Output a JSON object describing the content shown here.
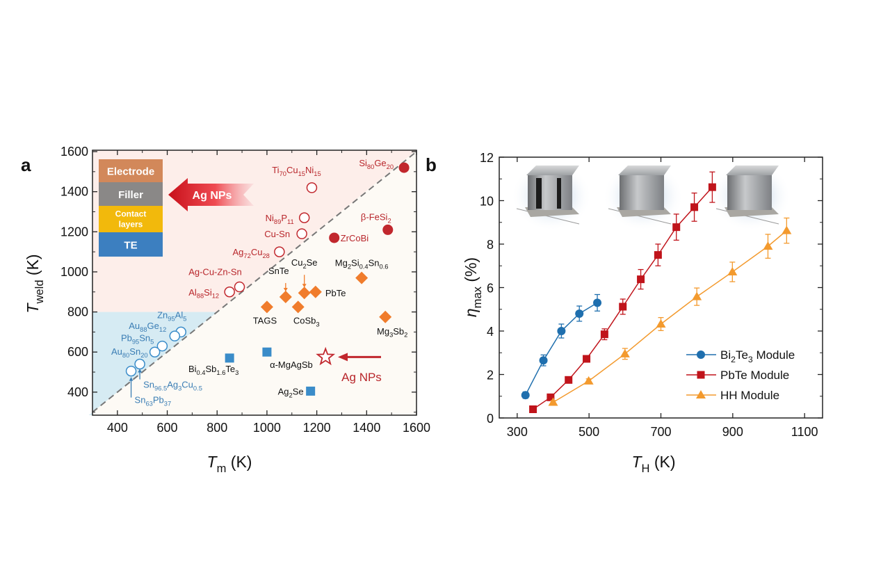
{
  "chart_data": [
    {
      "panel": "a",
      "type": "scatter",
      "xlabel": [
        [
          "T",
          0,
          "i"
        ],
        [
          "m",
          1
        ],
        [
          " (K)",
          0
        ]
      ],
      "ylabel": [
        [
          "T",
          0,
          "i"
        ],
        [
          "weld",
          1
        ],
        [
          " (K)",
          0
        ]
      ],
      "xlim": [
        300,
        1600
      ],
      "ylim": [
        285,
        1607
      ],
      "xticks": [
        400,
        600,
        800,
        1000,
        1200,
        1400,
        1600
      ],
      "yticks": [
        400,
        600,
        800,
        1000,
        1200,
        1400,
        1600
      ],
      "diagonal": "y = x dashed",
      "regions": {
        "pink": "#fdeeea",
        "blue": "#d6ebf3",
        "background": "#fdfaf5"
      },
      "colors": {
        "red": "#c1272d",
        "orange": "#f07c2c",
        "blue": "#3a8cc9",
        "red_text": "#b8262b",
        "blue_text": "#3a7db4"
      },
      "inset_layers": [
        {
          "label": "Electrode",
          "color": "#d2885a"
        },
        {
          "label": "Filler",
          "color": "#8a8887"
        },
        {
          "label": "Contact layers",
          "color": "#f2b90c"
        },
        {
          "label": "TE",
          "color": "#3c7fc0"
        }
      ],
      "inset_arrow_label": "Ag NPs",
      "groups": [
        {
          "marker": "open-circle",
          "color": "red",
          "points": [
            {
              "label": [
                [
                  "Ti",
                  0
                ],
                [
                  "70",
                  1
                ],
                [
                  "Cu",
                  0
                ],
                [
                  "15",
                  1
                ],
                [
                  "Ni",
                  0
                ],
                [
                  "15",
                  1
                ]
              ],
              "x": 1180,
              "y": 1420
            },
            {
              "label": [
                [
                  "Ni",
                  0
                ],
                [
                  "89",
                  1
                ],
                [
                  "P",
                  0
                ],
                [
                  "11",
                  1
                ]
              ],
              "x": 1150,
              "y": 1270
            },
            {
              "label": [
                [
                  "Cu-Sn",
                  0
                ]
              ],
              "x": 1140,
              "y": 1190
            },
            {
              "label": [
                [
                  "Ag",
                  0
                ],
                [
                  "72",
                  1
                ],
                [
                  "Cu",
                  0
                ],
                [
                  "28",
                  1
                ]
              ],
              "x": 1050,
              "y": 1100
            },
            {
              "label": [
                [
                  "Ag-Cu-Zn-Sn",
                  0
                ]
              ],
              "x": 890,
              "y": 925
            },
            {
              "label": [
                [
                  "Al",
                  0
                ],
                [
                  "88",
                  1
                ],
                [
                  "Si",
                  0
                ],
                [
                  "12",
                  1
                ]
              ],
              "x": 850,
              "y": 900
            }
          ]
        },
        {
          "marker": "filled-circle",
          "color": "red",
          "points": [
            {
              "label": [
                [
                  "Si",
                  0
                ],
                [
                  "80",
                  1
                ],
                [
                  "Ge",
                  0
                ],
                [
                  "20",
                  1
                ]
              ],
              "x": 1550,
              "y": 1520
            },
            {
              "label": [
                [
                  "β-FeSi",
                  0
                ],
                [
                  "2",
                  1
                ]
              ],
              "x": 1485,
              "y": 1210
            },
            {
              "label": [
                [
                  "ZrCoBi",
                  0
                ]
              ],
              "x": 1270,
              "y": 1170
            }
          ]
        },
        {
          "marker": "diamond",
          "color": "orange",
          "points": [
            {
              "label": [
                [
                  "Mg",
                  0
                ],
                [
                  "2",
                  1
                ],
                [
                  "Si",
                  0
                ],
                [
                  "0.4",
                  1
                ],
                [
                  "Sn",
                  0
                ],
                [
                  "0.6",
                  1
                ]
              ],
              "x": 1380,
              "y": 970
            },
            {
              "label": [
                [
                  "SnTe",
                  0
                ]
              ],
              "x": 1075,
              "y": 875
            },
            {
              "label": [
                [
                  "Cu",
                  0
                ],
                [
                  "2",
                  1
                ],
                [
                  "Se",
                  0
                ]
              ],
              "x": 1150,
              "y": 895
            },
            {
              "label": [
                [
                  "PbTe",
                  0
                ]
              ],
              "x": 1195,
              "y": 900
            },
            {
              "label": [
                [
                  "TAGS",
                  0
                ]
              ],
              "x": 1000,
              "y": 825
            },
            {
              "label": [
                [
                  "CoSb",
                  0
                ],
                [
                  "3",
                  1
                ]
              ],
              "x": 1125,
              "y": 825
            },
            {
              "label": [
                [
                  "Mg",
                  0
                ],
                [
                  "3",
                  1
                ],
                [
                  "Sb",
                  0
                ],
                [
                  "2",
                  1
                ]
              ],
              "x": 1475,
              "y": 775
            }
          ]
        },
        {
          "marker": "square",
          "color": "blue",
          "points": [
            {
              "label": [
                [
                  "Bi",
                  0
                ],
                [
                  "0.4",
                  1
                ],
                [
                  "Sb",
                  0
                ],
                [
                  "1.6",
                  1
                ],
                [
                  "Te",
                  0
                ],
                [
                  "3",
                  1
                ]
              ],
              "x": 850,
              "y": 570
            },
            {
              "label": [
                [
                  "α-MgAgSb",
                  0
                ]
              ],
              "x": 1000,
              "y": 600
            },
            {
              "label": [
                [
                  "Ag",
                  0
                ],
                [
                  "2",
                  1
                ],
                [
                  "Se",
                  0
                ]
              ],
              "x": 1175,
              "y": 405
            }
          ]
        },
        {
          "marker": "open-circle",
          "color": "blue",
          "points": [
            {
              "label": [
                [
                  "Zn",
                  0
                ],
                [
                  "95",
                  1
                ],
                [
                  "Al",
                  0
                ],
                [
                  "5",
                  1
                ]
              ],
              "x": 655,
              "y": 700
            },
            {
              "label": [
                [
                  "Au",
                  0
                ],
                [
                  "88",
                  1
                ],
                [
                  "Ge",
                  0
                ],
                [
                  "12",
                  1
                ]
              ],
              "x": 630,
              "y": 680
            },
            {
              "label": [
                [
                  "Pb",
                  0
                ],
                [
                  "95",
                  1
                ],
                [
                  "Sn",
                  0
                ],
                [
                  "5",
                  1
                ]
              ],
              "x": 580,
              "y": 630
            },
            {
              "label": [
                [
                  "Au",
                  0
                ],
                [
                  "80",
                  1
                ],
                [
                  "Sn",
                  0
                ],
                [
                  "20",
                  1
                ]
              ],
              "x": 550,
              "y": 600
            },
            {
              "label": [
                [
                  "Sn",
                  0
                ],
                [
                  "96.5",
                  1
                ],
                [
                  "Ag",
                  0
                ],
                [
                  "3",
                  1
                ],
                [
                  "Cu",
                  0
                ],
                [
                  "0.5",
                  1
                ]
              ],
              "x": 490,
              "y": 540
            },
            {
              "label": [
                [
                  "Sn",
                  0
                ],
                [
                  "63",
                  1
                ],
                [
                  "Pb",
                  0
                ],
                [
                  "37",
                  1
                ]
              ],
              "x": 455,
              "y": 505
            }
          ]
        }
      ],
      "highlight": {
        "marker": "open-star",
        "color": "red",
        "x": 1235,
        "y": 575,
        "label": "Ag NPs"
      }
    },
    {
      "panel": "b",
      "type": "line",
      "xlabel": [
        [
          "T",
          0,
          "i"
        ],
        [
          "H",
          1
        ],
        [
          " (K)",
          0
        ]
      ],
      "ylabel": [
        [
          "η",
          0,
          "i"
        ],
        [
          "max",
          1
        ],
        [
          " (%)",
          0
        ]
      ],
      "xlim": [
        250,
        1150
      ],
      "ylim": [
        0,
        12
      ],
      "xticks": [
        300,
        500,
        700,
        900,
        1100
      ],
      "yticks": [
        0,
        2,
        4,
        6,
        8,
        10,
        12
      ],
      "legend_position": "bottom-right",
      "series": [
        {
          "name": [
            [
              "Bi",
              0
            ],
            [
              "2",
              1
            ],
            [
              "Te",
              0
            ],
            [
              "3",
              1
            ],
            [
              " Module",
              0
            ]
          ],
          "marker": "circle",
          "color": "#1f6fae",
          "x": [
            323,
            373,
            423,
            473,
            523
          ],
          "y": [
            1.05,
            2.65,
            4.0,
            4.8,
            5.3
          ],
          "err": [
            0.15,
            0.25,
            0.32,
            0.35,
            0.38
          ]
        },
        {
          "name": [
            [
              "PbTe  Module",
              0
            ]
          ],
          "marker": "square",
          "color": "#c0141b",
          "x": [
            344,
            393,
            443,
            493,
            543,
            594,
            644,
            692,
            743,
            793,
            843
          ],
          "y": [
            0.4,
            0.95,
            1.75,
            2.72,
            3.85,
            5.12,
            6.38,
            7.5,
            8.78,
            9.7,
            10.62
          ],
          "err": [
            0.08,
            0.1,
            0.1,
            0.15,
            0.25,
            0.35,
            0.45,
            0.5,
            0.6,
            0.65,
            0.7
          ]
        },
        {
          "name": [
            [
              "HH       Module",
              0
            ]
          ],
          "marker": "triangle",
          "color": "#f39a2e",
          "x": [
            400,
            499,
            600,
            700,
            800,
            899,
            998,
            1050
          ],
          "y": [
            0.72,
            1.7,
            2.95,
            4.32,
            5.58,
            6.72,
            7.9,
            8.62
          ],
          "err": [
            0.08,
            0.1,
            0.25,
            0.3,
            0.4,
            0.45,
            0.55,
            0.58
          ]
        }
      ],
      "insets": [
        "Bi2Te3 module photo",
        "PbTe module photo",
        "HH module photo"
      ]
    }
  ]
}
